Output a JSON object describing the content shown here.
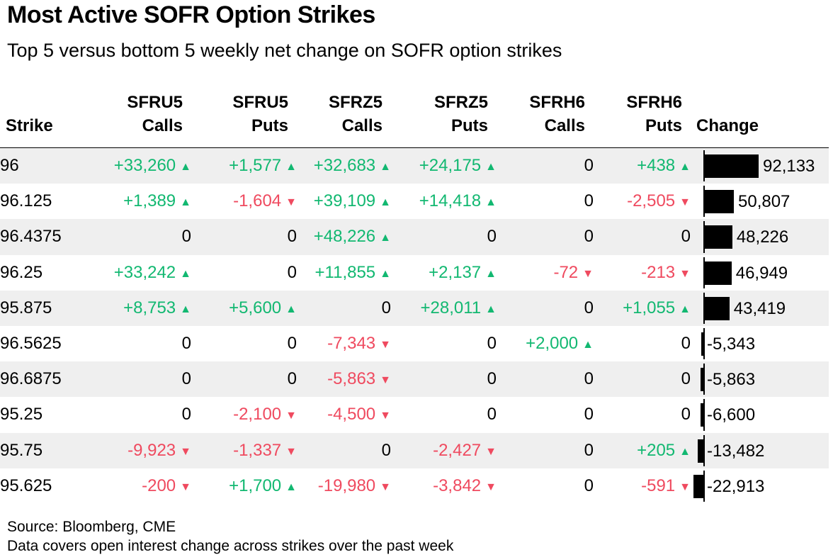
{
  "title": "Most Active SOFR Option Strikes",
  "subtitle": "Top 5 versus bottom 5 weekly net change on SOFR option strikes",
  "source": "Source: Bloomberg, CME",
  "note": "Data covers open interest change across strikes over the past week",
  "colors": {
    "positive": "#12b871",
    "negative": "#ef4a5f",
    "bar": "#000000",
    "shade": "#efefef"
  },
  "chart_data": {
    "type": "table",
    "columns": [
      {
        "key": "strike",
        "top": "",
        "bottom": "Strike"
      },
      {
        "key": "sfru5_calls",
        "top": "SFRU5",
        "bottom": "Calls"
      },
      {
        "key": "sfru5_puts",
        "top": "SFRU5",
        "bottom": "Puts"
      },
      {
        "key": "sfrz5_calls",
        "top": "SFRZ5",
        "bottom": "Calls"
      },
      {
        "key": "sfrz5_puts",
        "top": "SFRZ5",
        "bottom": "Puts"
      },
      {
        "key": "sfrh6_calls",
        "top": "SFRH6",
        "bottom": "Calls"
      },
      {
        "key": "sfrh6_puts",
        "top": "SFRH6",
        "bottom": "Puts"
      },
      {
        "key": "change",
        "top": "",
        "bottom": "Change"
      }
    ],
    "rows": [
      {
        "strike": "96",
        "values": [
          "+33,260",
          "+1,577",
          "+32,683",
          "+24,175",
          "0",
          "+438"
        ],
        "change": 92133,
        "change_label": "92,133"
      },
      {
        "strike": "96.125",
        "values": [
          "+1,389",
          "-1,604",
          "+39,109",
          "+14,418",
          "0",
          "-2,505"
        ],
        "change": 50807,
        "change_label": "50,807"
      },
      {
        "strike": "96.4375",
        "values": [
          "0",
          "0",
          "+48,226",
          "0",
          "0",
          "0"
        ],
        "change": 48226,
        "change_label": "48,226"
      },
      {
        "strike": "96.25",
        "values": [
          "+33,242",
          "0",
          "+11,855",
          "+2,137",
          "-72",
          "-213"
        ],
        "change": 46949,
        "change_label": "46,949"
      },
      {
        "strike": "95.875",
        "values": [
          "+8,753",
          "+5,600",
          "0",
          "+28,011",
          "0",
          "+1,055"
        ],
        "change": 43419,
        "change_label": "43,419"
      },
      {
        "strike": "96.5625",
        "values": [
          "0",
          "0",
          "-7,343",
          "0",
          "+2,000",
          "0"
        ],
        "change": -5343,
        "change_label": "-5,343"
      },
      {
        "strike": "96.6875",
        "values": [
          "0",
          "0",
          "-5,863",
          "0",
          "0",
          "0"
        ],
        "change": -5863,
        "change_label": "-5,863"
      },
      {
        "strike": "95.25",
        "values": [
          "0",
          "-2,100",
          "-4,500",
          "0",
          "0",
          "0"
        ],
        "change": -6600,
        "change_label": "-6,600"
      },
      {
        "strike": "95.75",
        "values": [
          "-9,923",
          "-1,337",
          "0",
          "-2,427",
          "0",
          "+205"
        ],
        "change": -13482,
        "change_label": "-13,482"
      },
      {
        "strike": "95.625",
        "values": [
          "-200",
          "+1,700",
          "-19,980",
          "-3,842",
          "0",
          "-591"
        ],
        "change": -22913,
        "change_label": "-22,913"
      }
    ],
    "change_range": [
      -22913,
      92133
    ]
  }
}
